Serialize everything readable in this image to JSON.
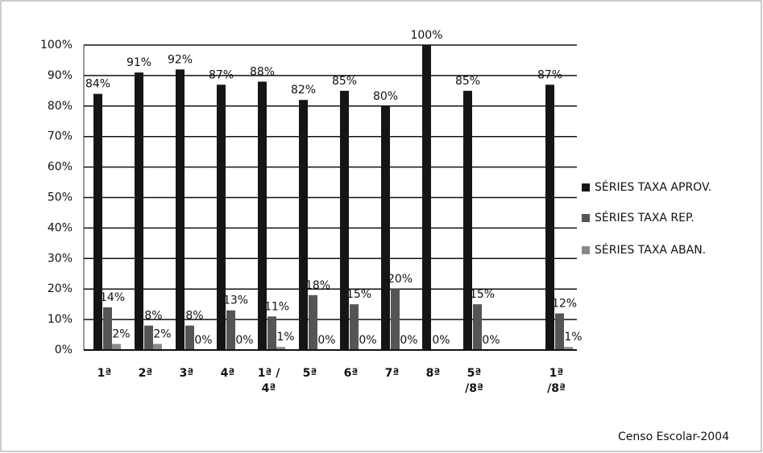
{
  "chart_data": {
    "type": "bar",
    "categories": [
      "1ª",
      "2ª",
      "3ª",
      "4ª",
      "1ª / 4ª",
      "5ª",
      "6ª",
      "7ª",
      "8ª",
      "5ª /8ª",
      null,
      "1ª /8ª"
    ],
    "series": [
      {
        "name": "SÉRIES TAXA APROV.",
        "color": "#151515",
        "values": [
          84,
          91,
          92,
          87,
          88,
          82,
          85,
          80,
          100,
          85,
          null,
          87
        ],
        "value_labels": [
          "84%",
          "91%",
          "92%",
          "87%",
          "88%",
          "82%",
          "85%",
          "80%",
          "100%",
          "85%",
          null,
          "87%"
        ]
      },
      {
        "name": "SÉRIES TAXA REP.",
        "color": "#555555",
        "values": [
          14,
          8,
          8,
          13,
          11,
          18,
          15,
          20,
          0,
          15,
          null,
          12
        ],
        "value_labels": [
          "14%",
          "8%",
          "8%",
          "13%",
          "11%",
          "18%",
          "15%",
          "20%",
          "0%",
          "15%",
          null,
          "12%"
        ]
      },
      {
        "name": "SÉRIES TAXA ABAN.",
        "color": "#8a8a8a",
        "values": [
          2,
          2,
          0,
          0,
          1,
          0,
          0,
          0,
          0,
          0,
          null,
          1
        ],
        "value_labels": [
          "2%",
          "2%",
          "0%",
          "0%",
          "1%",
          "0%",
          "0%",
          "0%",
          null,
          "0%",
          null,
          "1%"
        ]
      }
    ],
    "ylim": [
      0,
      100
    ],
    "yticks": [
      {
        "value": 0,
        "label": "0%"
      },
      {
        "value": 10,
        "label": "10%"
      },
      {
        "value": 20,
        "label": "20%"
      },
      {
        "value": 30,
        "label": "30%"
      },
      {
        "value": 40,
        "label": "40%"
      },
      {
        "value": 50,
        "label": "50%"
      },
      {
        "value": 60,
        "label": "60%"
      },
      {
        "value": 70,
        "label": "70%"
      },
      {
        "value": 80,
        "label": "80%"
      },
      {
        "value": 90,
        "label": "90%"
      },
      {
        "value": 100,
        "label": "100%"
      }
    ],
    "grid": true,
    "legend": "right",
    "source": "Censo Escolar-2004"
  }
}
